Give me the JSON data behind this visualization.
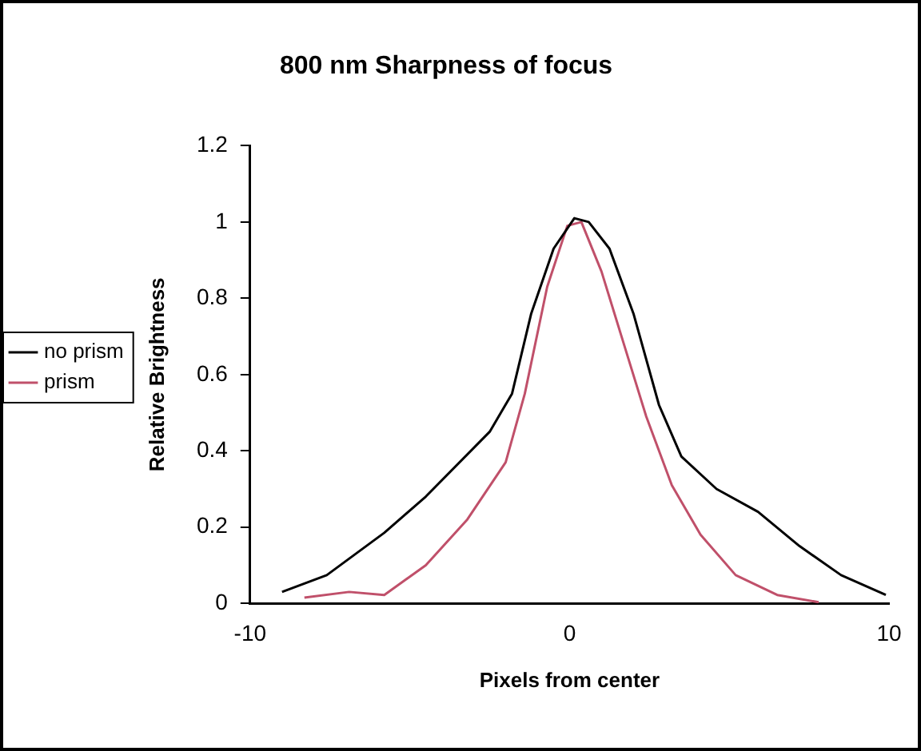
{
  "chart_data": {
    "type": "line",
    "title": "800 nm Sharpness of focus",
    "xlabel": "Pixels from center",
    "ylabel": "Relative Brightness",
    "xlim": [
      -10,
      10
    ],
    "xticks": [
      -10,
      0,
      10
    ],
    "ylim": [
      0,
      1.2
    ],
    "yticks": [
      0,
      0.2,
      0.4,
      0.6,
      0.8,
      1,
      1.2
    ],
    "grid": false,
    "legend": "left",
    "marker": "none",
    "series": [
      {
        "name": "no prism",
        "color": "#000000",
        "x": [
          -9.0,
          -7.6,
          -5.8,
          -4.5,
          -2.5,
          -1.8,
          -1.2,
          -0.5,
          0.15,
          0.6,
          1.25,
          2.0,
          2.8,
          3.5,
          4.6,
          5.9,
          7.2,
          8.5,
          9.9
        ],
        "values": [
          0.03,
          0.074,
          0.185,
          0.28,
          0.45,
          0.55,
          0.76,
          0.93,
          1.01,
          1.0,
          0.93,
          0.76,
          0.52,
          0.385,
          0.3,
          0.24,
          0.15,
          0.074,
          0.022
        ]
      },
      {
        "name": "prism",
        "color": "#c0506a",
        "x": [
          -8.3,
          -6.9,
          -5.8,
          -4.5,
          -3.2,
          -2.0,
          -1.4,
          -0.7,
          -0.07,
          0.37,
          1.0,
          1.7,
          2.4,
          3.2,
          4.1,
          5.2,
          6.5,
          7.8
        ],
        "values": [
          0.015,
          0.03,
          0.022,
          0.1,
          0.22,
          0.37,
          0.55,
          0.83,
          0.99,
          1.0,
          0.87,
          0.68,
          0.49,
          0.31,
          0.18,
          0.074,
          0.022,
          0.003
        ]
      }
    ]
  }
}
